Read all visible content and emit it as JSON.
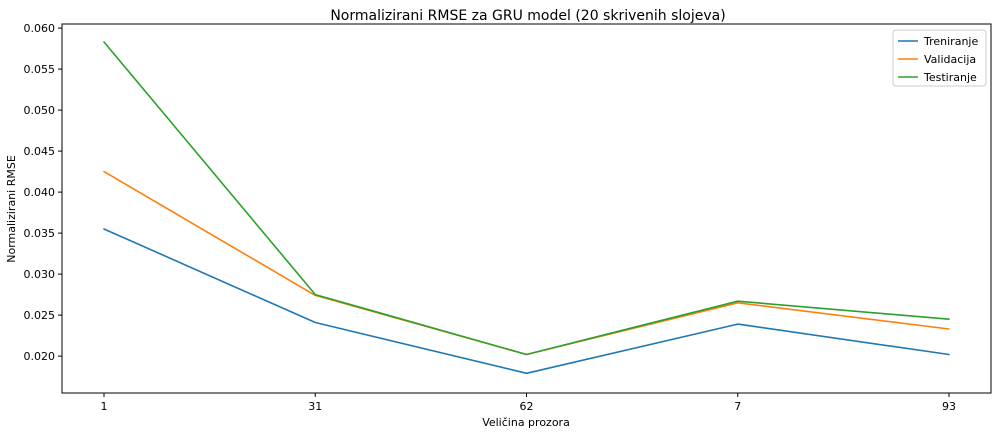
{
  "chart_data": {
    "type": "line",
    "title": "Normalizirani RMSE za GRU model (20 skrivenih slojeva)",
    "xlabel": "Veličina prozora",
    "ylabel": "Normalizirani RMSE",
    "categories": [
      "1",
      "31",
      "62",
      "7",
      "93"
    ],
    "ylim": [
      0.0155,
      0.0605
    ],
    "yticks": [
      0.02,
      0.025,
      0.03,
      0.035,
      0.04,
      0.045,
      0.05,
      0.055,
      0.06
    ],
    "ytick_labels": [
      "0.020",
      "0.025",
      "0.030",
      "0.035",
      "0.040",
      "0.045",
      "0.050",
      "0.055",
      "0.060"
    ],
    "grid": false,
    "legend_position": "top-right",
    "series": [
      {
        "name": "Treniranje",
        "color": "#1f77b4",
        "values": [
          0.0355,
          0.0241,
          0.0179,
          0.0239,
          0.0202
        ]
      },
      {
        "name": "Validacija",
        "color": "#ff7f0e",
        "values": [
          0.0425,
          0.0274,
          0.0202,
          0.0265,
          0.0233
        ]
      },
      {
        "name": "Testiranje",
        "color": "#2ca02c",
        "values": [
          0.0583,
          0.0275,
          0.0202,
          0.0267,
          0.0245
        ]
      }
    ]
  }
}
